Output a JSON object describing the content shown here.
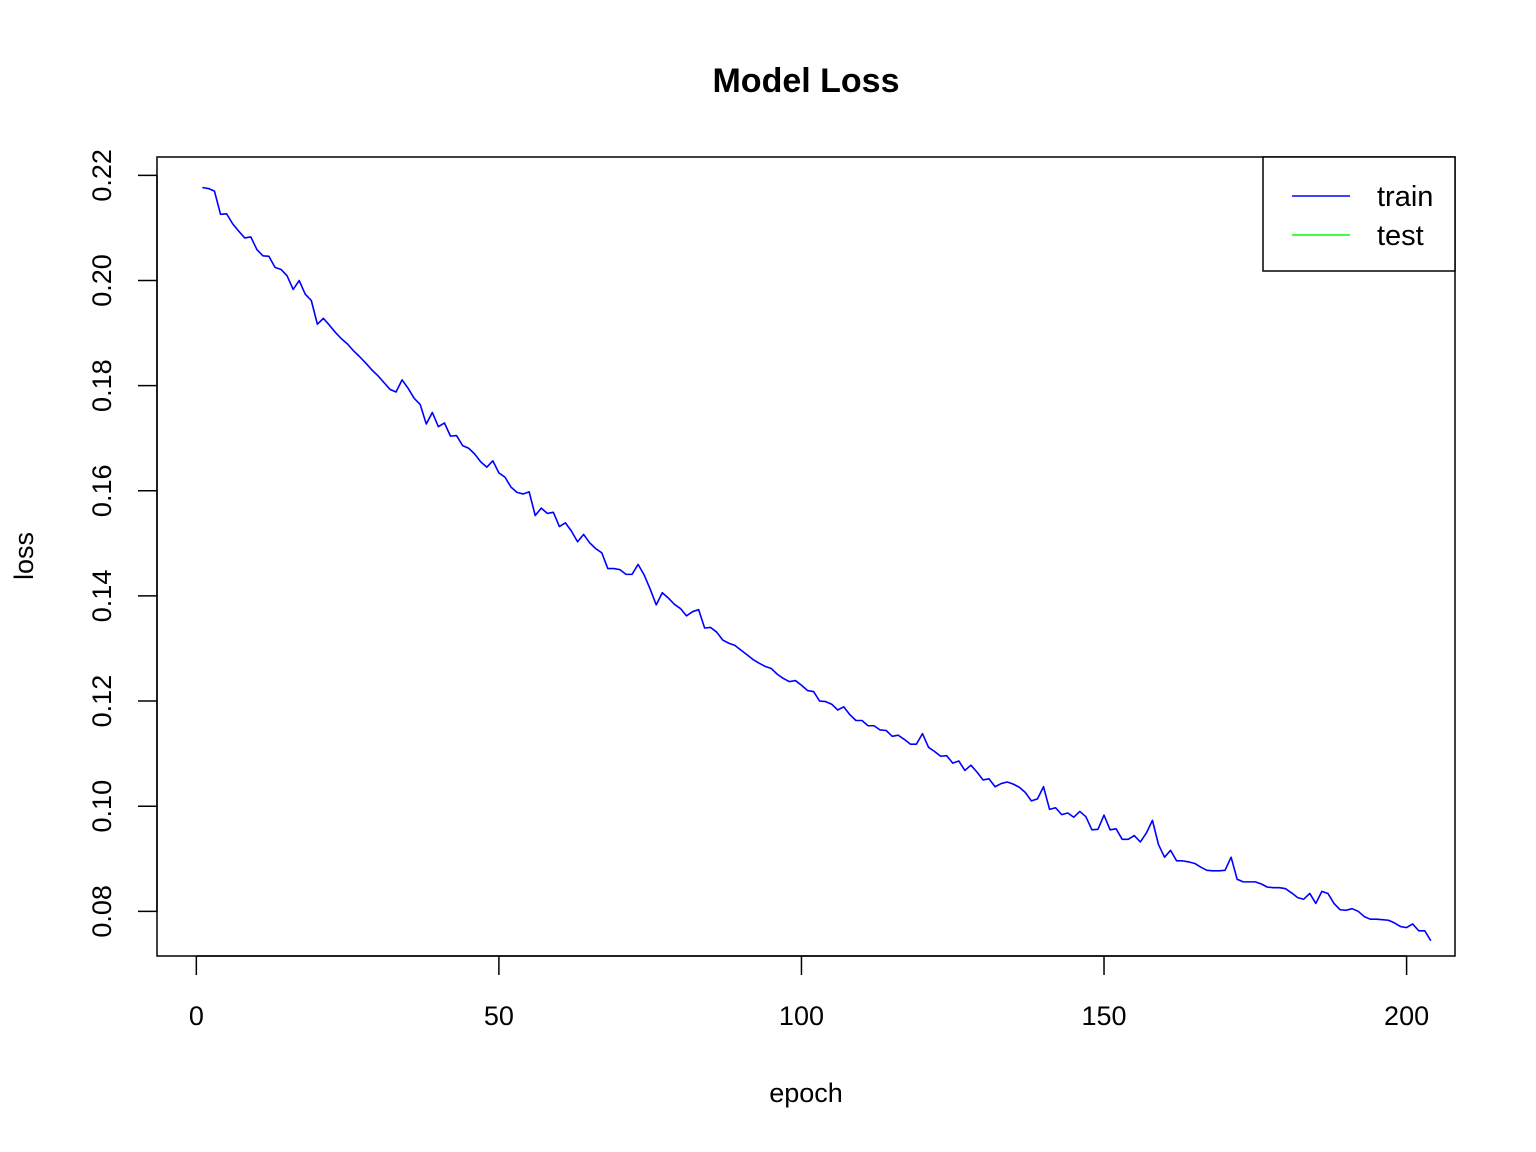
{
  "chart_data": {
    "type": "line",
    "title": "Model Loss",
    "xlabel": "epoch",
    "ylabel": "loss",
    "xlim": [
      -6.5,
      208
    ],
    "ylim": [
      0.0715,
      0.2235
    ],
    "x_ticks": [
      0,
      50,
      100,
      150,
      200
    ],
    "y_ticks": [
      0.08,
      0.1,
      0.12,
      0.14,
      0.16,
      0.18,
      0.2,
      0.22
    ],
    "y_tick_labels": [
      "0.08",
      "0.10",
      "0.12",
      "0.14",
      "0.16",
      "0.18",
      "0.20",
      "0.22"
    ],
    "grid": false,
    "legend": {
      "position": "top-right",
      "entries": [
        {
          "name": "train",
          "color": "#0000ff"
        },
        {
          "name": "test",
          "color": "#00ff00"
        }
      ]
    },
    "series": [
      {
        "name": "train",
        "color": "#0000ff",
        "x_start": 1,
        "x_step": 1,
        "values": [
          0.2177,
          0.2175,
          0.217,
          0.2126,
          0.2127,
          0.2108,
          0.2094,
          0.2081,
          0.2083,
          0.2059,
          0.2047,
          0.2046,
          0.2025,
          0.2021,
          0.2009,
          0.1983,
          0.2,
          0.1974,
          0.1962,
          0.1917,
          0.1928,
          0.1915,
          0.1901,
          0.1889,
          0.1879,
          0.1866,
          0.1855,
          0.1843,
          0.183,
          0.1819,
          0.1806,
          0.1793,
          0.1788,
          0.1811,
          0.1795,
          0.1776,
          0.1764,
          0.1727,
          0.1749,
          0.1722,
          0.1729,
          0.1704,
          0.1705,
          0.1686,
          0.1681,
          0.167,
          0.1655,
          0.1645,
          0.1657,
          0.1634,
          0.1626,
          0.1607,
          0.1597,
          0.1594,
          0.1598,
          0.1553,
          0.1567,
          0.1557,
          0.1559,
          0.1532,
          0.1539,
          0.1523,
          0.1503,
          0.1517,
          0.1501,
          0.149,
          0.1482,
          0.1452,
          0.1452,
          0.145,
          0.1441,
          0.1441,
          0.146,
          0.144,
          0.1413,
          0.1383,
          0.1406,
          0.1396,
          0.1384,
          0.1376,
          0.1362,
          0.137,
          0.1374,
          0.1339,
          0.134,
          0.1331,
          0.1316,
          0.131,
          0.1306,
          0.1297,
          0.1288,
          0.1279,
          0.1272,
          0.1266,
          0.1262,
          0.1251,
          0.1243,
          0.1237,
          0.1239,
          0.123,
          0.122,
          0.1218,
          0.12,
          0.1199,
          0.1194,
          0.1183,
          0.1189,
          0.1174,
          0.1163,
          0.1163,
          0.1153,
          0.1153,
          0.1145,
          0.1144,
          0.1133,
          0.1135,
          0.1127,
          0.1118,
          0.1118,
          0.1138,
          0.1112,
          0.1104,
          0.1095,
          0.1096,
          0.1082,
          0.1086,
          0.1068,
          0.1078,
          0.1065,
          0.105,
          0.1052,
          0.1037,
          0.1043,
          0.1046,
          0.1042,
          0.1036,
          0.1026,
          0.101,
          0.1014,
          0.1037,
          0.0994,
          0.0997,
          0.0984,
          0.0987,
          0.0979,
          0.099,
          0.098,
          0.0955,
          0.0956,
          0.0983,
          0.0955,
          0.0957,
          0.0937,
          0.0937,
          0.0944,
          0.0932,
          0.0949,
          0.0973,
          0.0927,
          0.0903,
          0.0916,
          0.0896,
          0.0896,
          0.0894,
          0.0891,
          0.0884,
          0.0878,
          0.0877,
          0.0877,
          0.0878,
          0.0903,
          0.0861,
          0.0856,
          0.0856,
          0.0856,
          0.0852,
          0.0846,
          0.0845,
          0.0845,
          0.0843,
          0.0835,
          0.0826,
          0.0823,
          0.0834,
          0.0815,
          0.0838,
          0.0834,
          0.0815,
          0.0803,
          0.0802,
          0.0805,
          0.08,
          0.079,
          0.0785,
          0.0785,
          0.0784,
          0.0783,
          0.0778,
          0.0771,
          0.0769,
          0.0776,
          0.0763,
          0.0763,
          0.0744
        ]
      }
    ]
  }
}
